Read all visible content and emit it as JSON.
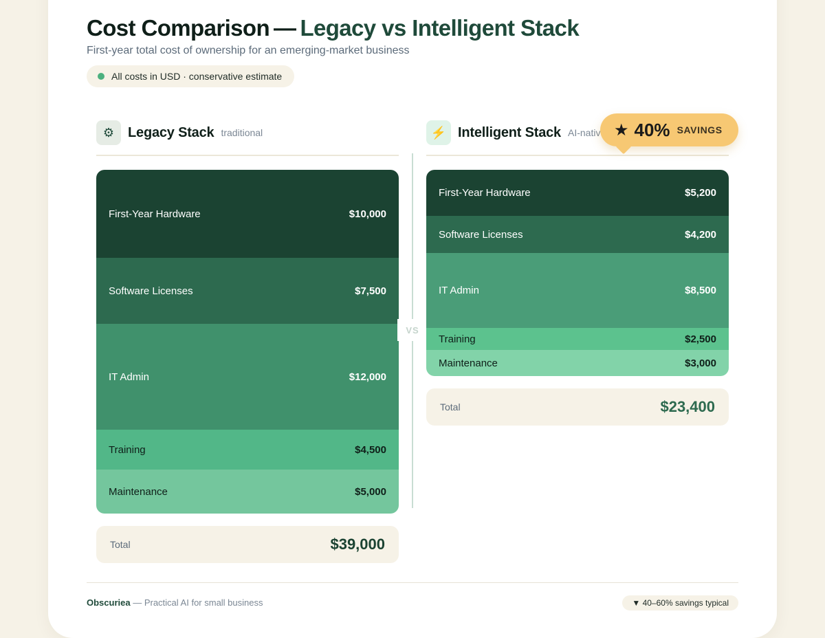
{
  "header": {
    "title_main": "Cost Comparison",
    "title_dash": "—",
    "title_accent": "Legacy vs Intelligent Stack",
    "subtitle": "First-year total cost of ownership for an emerging-market business",
    "note": "All costs in USD · conservative estimate"
  },
  "legacy": {
    "icon": "gear-icon",
    "icon_glyph": "⚙",
    "name": "Legacy Stack",
    "tag": "traditional",
    "segments": [
      {
        "label": "First-Year Hardware",
        "value": "$10,000"
      },
      {
        "label": "Software Licenses",
        "value": "$7,500"
      },
      {
        "label": "IT Admin",
        "value": "$12,000"
      },
      {
        "label": "Training",
        "value": "$4,500"
      },
      {
        "label": "Maintenance",
        "value": "$5,000"
      }
    ],
    "total_label": "Total",
    "total_value": "$39,000"
  },
  "intelligent": {
    "icon": "lightning-icon",
    "icon_glyph": "⚡",
    "name": "Intelligent Stack",
    "tag": "AI-native",
    "segments": [
      {
        "label": "First-Year Hardware",
        "value": "$5,200"
      },
      {
        "label": "Software Licenses",
        "value": "$4,200"
      },
      {
        "label": "IT Admin",
        "value": "$8,500"
      },
      {
        "label": "Training",
        "value": "$2,500"
      },
      {
        "label": "Maintenance",
        "value": "$3,000"
      }
    ],
    "total_label": "Total",
    "total_value": "$23,400"
  },
  "divider_label": "VS",
  "savings": {
    "star": "★",
    "percent": "40%",
    "label": "SAVINGS"
  },
  "footer": {
    "brand": "Obscuriea",
    "tagline": " — Practical AI for small business",
    "pill": "▼ 40–60% savings typical"
  },
  "colors": {
    "hardware": "#1b4332",
    "software": "#2d6a4f",
    "it_admin_legacy": "#40916c",
    "it_admin_intelligent": "#4a9d78",
    "training_legacy": "#52b788",
    "training_intelligent": "#5cc28e",
    "maintenance": "#74c69d",
    "maintenance_intelligent": "#82d3a9",
    "savings_badge": "#f7c873",
    "background": "#f6f2e7"
  }
}
